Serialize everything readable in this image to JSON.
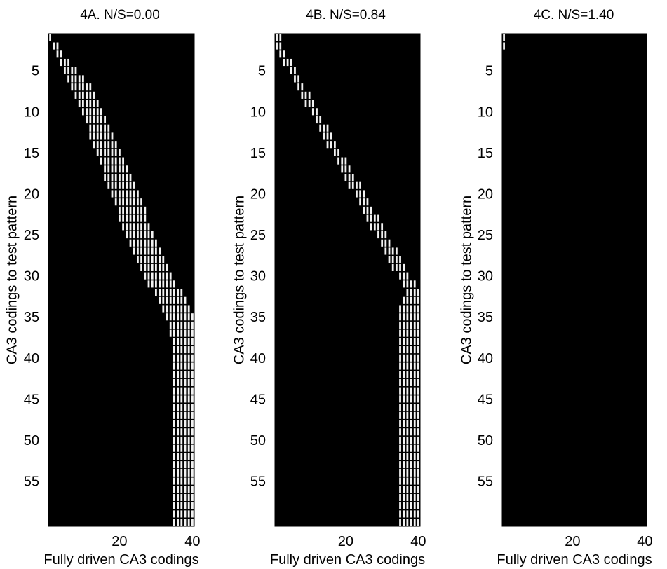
{
  "chart_data": [
    {
      "type": "heatmap",
      "title": "4A. N/S=0.00",
      "xlabel": "Fully driven CA3 codings",
      "ylabel": "CA3 codings to test pattern",
      "x_range": [
        1,
        40
      ],
      "y_range": [
        1,
        60
      ],
      "x_ticks": [
        20,
        40
      ],
      "y_ticks": [
        5,
        10,
        15,
        20,
        25,
        30,
        35,
        40,
        45,
        50,
        55
      ],
      "colormap": "gray",
      "background_value": 0,
      "active_region": {
        "description_rows": "for test row y (1-60): columns from start to end show a high value",
        "rows": [
          {
            "y": 1,
            "x_start": 1,
            "x_end": 1
          },
          {
            "y": 2,
            "x_start": 2,
            "x_end": 3
          },
          {
            "y": 3,
            "x_start": 3,
            "x_end": 4
          },
          {
            "y": 4,
            "x_start": 4,
            "x_end": 6
          },
          {
            "y": 5,
            "x_start": 5,
            "x_end": 8
          },
          {
            "y": 6,
            "x_start": 6,
            "x_end": 10
          },
          {
            "y": 8,
            "x_start": 8,
            "x_end": 13
          },
          {
            "y": 10,
            "x_start": 10,
            "x_end": 15
          },
          {
            "y": 15,
            "x_start": 14,
            "x_end": 20
          },
          {
            "y": 20,
            "x_start": 18,
            "x_end": 25
          },
          {
            "y": 25,
            "x_start": 22,
            "x_end": 29
          },
          {
            "y": 30,
            "x_start": 27,
            "x_end": 34
          },
          {
            "y": 33,
            "x_start": 31,
            "x_end": 38
          },
          {
            "y": 35,
            "x_start": 33,
            "x_end": 40
          },
          {
            "y": 38,
            "x_start": 35,
            "x_end": 40
          },
          {
            "y": 60,
            "x_start": 35,
            "x_end": 40
          }
        ]
      }
    },
    {
      "type": "heatmap",
      "title": "4B. N/S=0.84",
      "xlabel": "Fully driven CA3 codings",
      "ylabel": "CA3 codings to test pattern",
      "x_range": [
        1,
        40
      ],
      "y_range": [
        1,
        60
      ],
      "x_ticks": [
        20,
        40
      ],
      "y_ticks": [
        5,
        10,
        15,
        20,
        25,
        30,
        35,
        40,
        45,
        50,
        55
      ],
      "colormap": "gray",
      "background_value": 0,
      "active_region": {
        "rows": [
          {
            "y": 1,
            "x_start": 1,
            "x_end": 2
          },
          {
            "y": 2,
            "x_start": 1,
            "x_end": 2
          },
          {
            "y": 32,
            "x_start": 37,
            "x_end": 40
          },
          {
            "y": 34,
            "x_start": 35,
            "x_end": 40
          },
          {
            "y": 60,
            "x_start": 35,
            "x_end": 40
          }
        ]
      }
    },
    {
      "type": "heatmap",
      "title": "4C. N/S=1.40",
      "xlabel": "Fully driven CA3 codings",
      "ylabel": "CA3 codings to test pattern",
      "x_range": [
        1,
        40
      ],
      "y_range": [
        1,
        60
      ],
      "x_ticks": [
        20,
        40
      ],
      "y_ticks": [
        5,
        10,
        15,
        20,
        25,
        30,
        35,
        40,
        45,
        50,
        55
      ],
      "colormap": "gray",
      "background_value": 0,
      "active_region": {
        "rows": [
          {
            "y": 1,
            "x_start": 1,
            "x_end": 1
          },
          {
            "y": 2,
            "x_start": 1,
            "x_end": 1
          }
        ]
      }
    }
  ]
}
